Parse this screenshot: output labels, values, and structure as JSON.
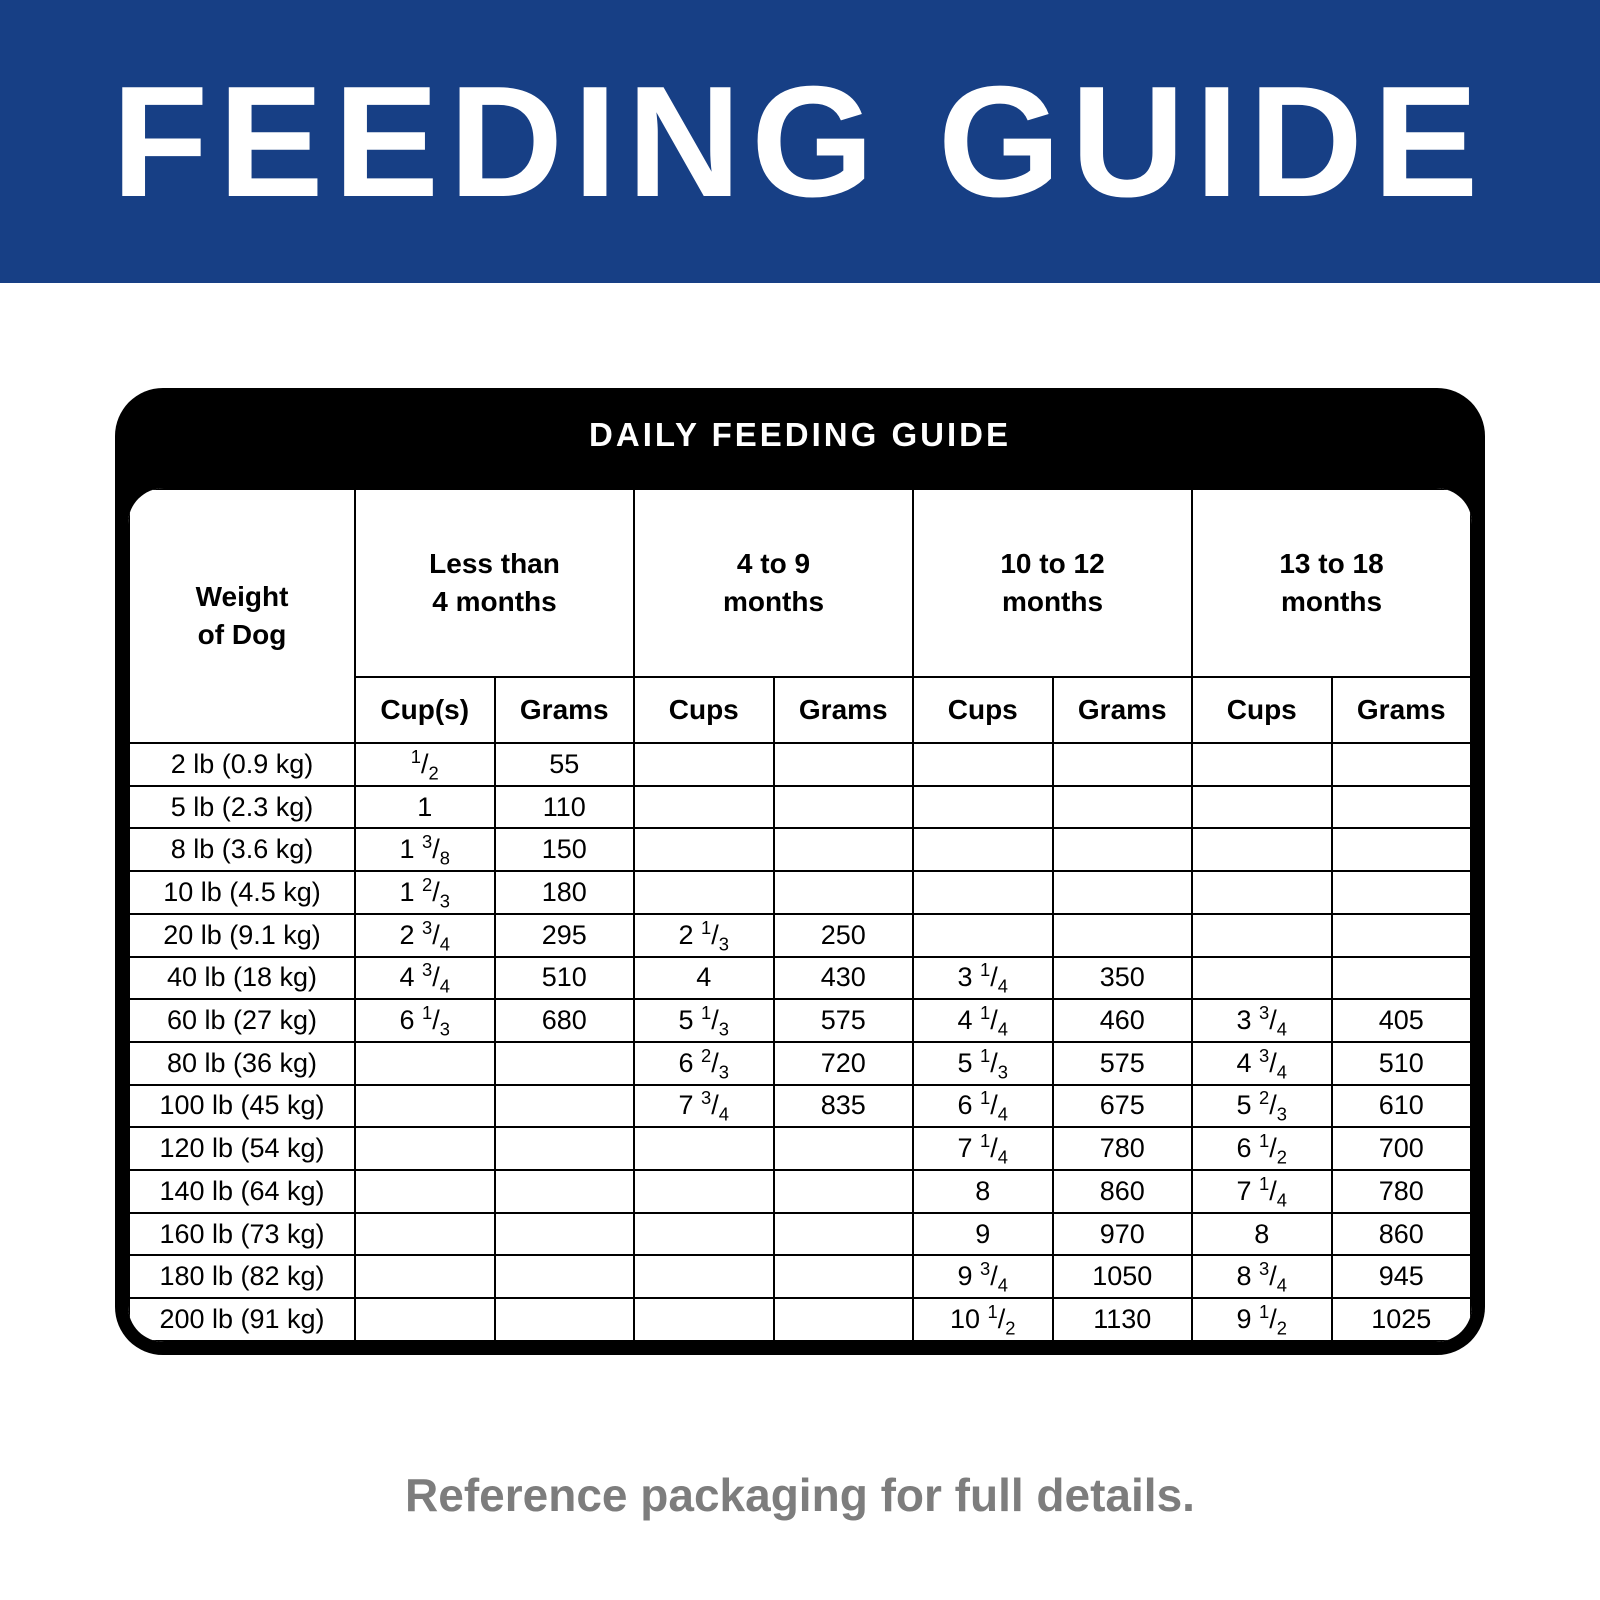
{
  "colors": {
    "banner_bg": "#173F85",
    "card_bg": "#000000",
    "footer_text": "#7D7D7D"
  },
  "banner": {
    "title": "FEEDING GUIDE"
  },
  "table": {
    "title": "DAILY FEEDING GUIDE",
    "weight_header": "Weight\nof Dog",
    "groups": [
      {
        "label": "Less than\n4 months",
        "sub": [
          "Cup(s)",
          "Grams"
        ]
      },
      {
        "label": "4 to 9\nmonths",
        "sub": [
          "Cups",
          "Grams"
        ]
      },
      {
        "label": "10 to 12\nmonths",
        "sub": [
          "Cups",
          "Grams"
        ]
      },
      {
        "label": "13 to 18\nmonths",
        "sub": [
          "Cups",
          "Grams"
        ]
      }
    ],
    "rows": [
      {
        "weight": "2 lb (0.9 kg)",
        "cells": [
          "1/2",
          "55",
          "",
          "",
          "",
          "",
          "",
          ""
        ]
      },
      {
        "weight": "5 lb (2.3 kg)",
        "cells": [
          "1",
          "110",
          "",
          "",
          "",
          "",
          "",
          ""
        ]
      },
      {
        "weight": "8 lb (3.6 kg)",
        "cells": [
          "1 3/8",
          "150",
          "",
          "",
          "",
          "",
          "",
          ""
        ]
      },
      {
        "weight": "10 lb (4.5 kg)",
        "cells": [
          "1 2/3",
          "180",
          "",
          "",
          "",
          "",
          "",
          ""
        ]
      },
      {
        "weight": "20 lb (9.1 kg)",
        "cells": [
          "2 3/4",
          "295",
          "2 1/3",
          "250",
          "",
          "",
          "",
          ""
        ]
      },
      {
        "weight": "40 lb (18 kg)",
        "cells": [
          "4 3/4",
          "510",
          "4",
          "430",
          "3 1/4",
          "350",
          "",
          ""
        ]
      },
      {
        "weight": "60 lb (27 kg)",
        "cells": [
          "6 1/3",
          "680",
          "5 1/3",
          "575",
          "4 1/4",
          "460",
          "3 3/4",
          "405"
        ]
      },
      {
        "weight": "80 lb (36 kg)",
        "cells": [
          "",
          "",
          "6 2/3",
          "720",
          "5 1/3",
          "575",
          "4 3/4",
          "510"
        ]
      },
      {
        "weight": "100 lb (45 kg)",
        "cells": [
          "",
          "",
          "7 3/4",
          "835",
          "6 1/4",
          "675",
          "5 2/3",
          "610"
        ]
      },
      {
        "weight": "120 lb (54 kg)",
        "cells": [
          "",
          "",
          "",
          "",
          "7 1/4",
          "780",
          "6 1/2",
          "700"
        ]
      },
      {
        "weight": "140 lb (64 kg)",
        "cells": [
          "",
          "",
          "",
          "",
          "8",
          "860",
          "7 1/4",
          "780"
        ]
      },
      {
        "weight": "160 lb (73 kg)",
        "cells": [
          "",
          "",
          "",
          "",
          "9",
          "970",
          "8",
          "860"
        ]
      },
      {
        "weight": "180 lb (82 kg)",
        "cells": [
          "",
          "",
          "",
          "",
          "9 3/4",
          "1050",
          "8 3/4",
          "945"
        ]
      },
      {
        "weight": "200 lb (91 kg)",
        "cells": [
          "",
          "",
          "",
          "",
          "10 1/2",
          "1130",
          "9 1/2",
          "1025"
        ]
      }
    ]
  },
  "footer": {
    "note": "Reference packaging for full details."
  }
}
